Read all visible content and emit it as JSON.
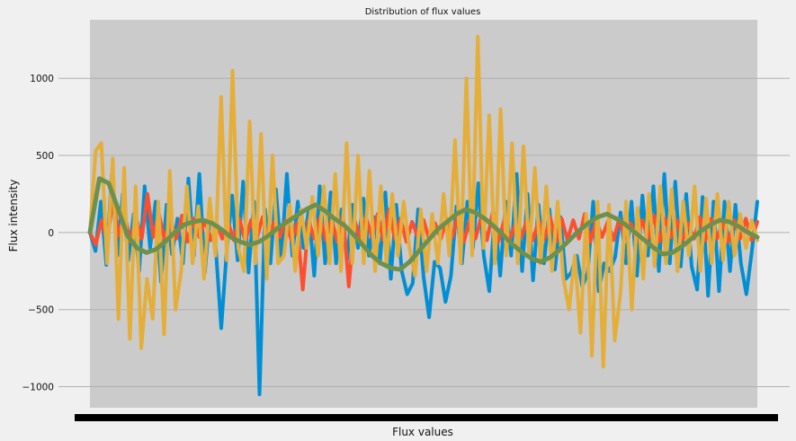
{
  "chart_data": {
    "type": "line",
    "title": "Distribution of flux values",
    "xlabel": "Flux values",
    "ylabel": "Flux intensity",
    "ylim": [
      -1160,
      1380
    ],
    "yticks": [
      {
        "value": 1000,
        "label": "1000"
      },
      {
        "value": 500,
        "label": "500"
      },
      {
        "value": 0,
        "label": "0"
      },
      {
        "value": -500,
        "label": "−500"
      },
      {
        "value": -1000,
        "label": "−1000"
      }
    ],
    "grid": true,
    "x_points": 3197,
    "background_band": {
      "color": "#cbcbcb"
    },
    "series_colors": [
      "#008fd5",
      "#fc4f30",
      "#e5ae38",
      "#6d904f"
    ],
    "series": [
      {
        "color": "#008fd5",
        "stroke_width": 4,
        "values": [
          0,
          -120,
          200,
          -210,
          380,
          -150,
          250,
          -180,
          120,
          -250,
          300,
          -100,
          200,
          -320,
          180,
          -140,
          90,
          -200,
          350,
          -150,
          380,
          -260,
          150,
          -100,
          -620,
          -120,
          240,
          -180,
          330,
          -260,
          200,
          -1050,
          150,
          -200,
          280,
          -170,
          380,
          -150,
          200,
          -100,
          150,
          -280,
          300,
          -200,
          260,
          -200,
          150,
          -180,
          180,
          -100,
          220,
          -150,
          100,
          -200,
          260,
          -300,
          180,
          -250,
          -400,
          -330,
          150,
          -290,
          -550,
          -190,
          -230,
          -450,
          -280,
          170,
          -200,
          200,
          -100,
          320,
          -150,
          -380,
          120,
          -280,
          200,
          -150,
          380,
          -250,
          250,
          -310,
          180,
          -200,
          150,
          -240,
          100,
          -300,
          -260,
          -150,
          -350,
          -260,
          200,
          -380,
          -200,
          -250,
          -160,
          130,
          -200,
          200,
          -280,
          240,
          -150,
          300,
          -250,
          380,
          -200,
          330,
          -220,
          250,
          -220,
          -370,
          230,
          -410,
          200,
          -380,
          200,
          -250,
          180,
          -200,
          -400,
          -120,
          200
        ]
      },
      {
        "color": "#fc4f30",
        "stroke_width": 4,
        "values": [
          0,
          -80,
          80,
          -50,
          220,
          -20,
          120,
          -60,
          100,
          -40,
          250,
          -30,
          120,
          -50,
          80,
          -40,
          110,
          -60,
          90,
          -30,
          80,
          -50,
          60,
          -40,
          70,
          -50,
          90,
          -60,
          80,
          -40,
          100,
          -50,
          70,
          -30,
          80,
          -50,
          60,
          -370,
          80,
          -40,
          100,
          -50,
          90,
          -60,
          110,
          -350,
          80,
          -40,
          100,
          -30,
          120,
          -50,
          150,
          -40,
          90,
          -60,
          70,
          -30,
          80,
          -50,
          60,
          -40,
          90,
          -30,
          120,
          -60,
          80,
          -40,
          100,
          -50,
          130,
          -60,
          80,
          -40,
          60,
          -30,
          90,
          -50,
          80,
          -40,
          100,
          -60,
          90,
          -50,
          80,
          -40,
          120,
          -60,
          80,
          -30,
          70,
          -50,
          90,
          -40,
          60,
          -50,
          80,
          -40,
          110,
          -60,
          90,
          -30,
          80,
          -50,
          60,
          -40,
          100,
          -50,
          90,
          -40,
          70,
          -60,
          80,
          -40,
          90,
          -50,
          70
        ]
      },
      {
        "color": "#e5ae38",
        "stroke_width": 4,
        "values": [
          0,
          530,
          580,
          -200,
          480,
          -560,
          420,
          -690,
          300,
          -750,
          -300,
          -560,
          200,
          -660,
          400,
          -500,
          -250,
          300,
          -200,
          170,
          -300,
          220,
          -150,
          880,
          -180,
          1050,
          -100,
          -250,
          720,
          -200,
          640,
          -300,
          500,
          -200,
          -150,
          180,
          -250,
          150,
          -100,
          230,
          -150,
          300,
          -200,
          380,
          -250,
          580,
          -200,
          500,
          -200,
          400,
          -250,
          300,
          -200,
          250,
          -150,
          200,
          -100,
          -280,
          150,
          -250,
          120,
          -200,
          250,
          -150,
          600,
          -200,
          1000,
          -150,
          1270,
          -100,
          760,
          -200,
          800,
          -150,
          580,
          -200,
          560,
          -150,
          420,
          -200,
          300,
          -250,
          200,
          -300,
          -500,
          -150,
          -650,
          120,
          -800,
          200,
          -870,
          180,
          -700,
          -400,
          200,
          -500,
          160,
          -300,
          250,
          -220,
          300,
          -200,
          280,
          -250,
          200,
          -150,
          300,
          -250,
          220,
          -200,
          250,
          -180,
          200,
          -150,
          120,
          -100,
          80,
          -50
        ]
      },
      {
        "color": "#6d904f",
        "stroke_width": 5,
        "values": [
          0,
          350,
          320,
          150,
          -20,
          -100,
          -130,
          -110,
          -60,
          0,
          50,
          70,
          80,
          60,
          20,
          -30,
          -60,
          -80,
          -60,
          -20,
          30,
          70,
          110,
          150,
          180,
          140,
          90,
          50,
          -10,
          -80,
          -150,
          -200,
          -230,
          -240,
          -190,
          -120,
          -50,
          20,
          70,
          120,
          150,
          130,
          90,
          40,
          -20,
          -80,
          -130,
          -170,
          -190,
          -160,
          -110,
          -50,
          10,
          60,
          100,
          120,
          90,
          50,
          0,
          -50,
          -100,
          -140,
          -130,
          -90,
          -40,
          10,
          50,
          80,
          70,
          40,
          0,
          -30
        ]
      }
    ]
  }
}
